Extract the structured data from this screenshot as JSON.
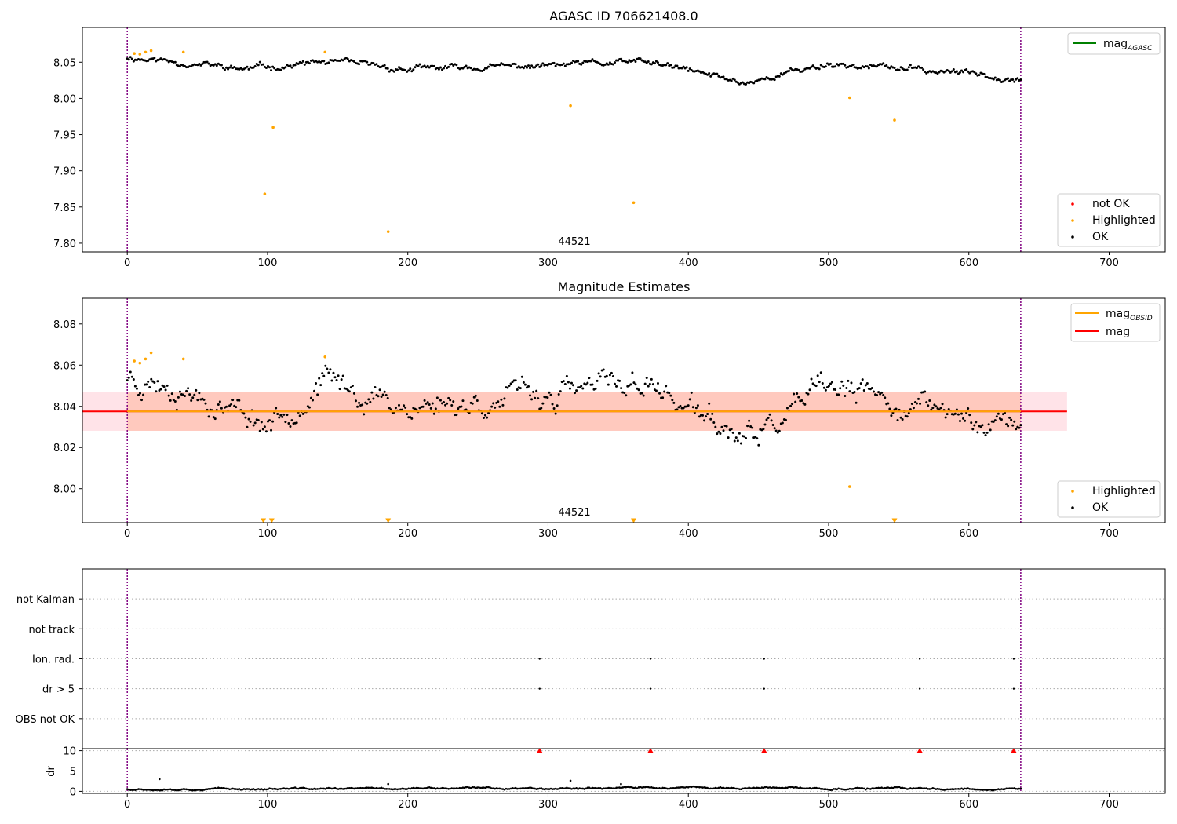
{
  "chart_data": [
    {
      "type": "scatter",
      "title": "AGASC ID 706621408.0",
      "xlim": [
        -32,
        740
      ],
      "ylim": [
        7.788,
        8.098
      ],
      "xticks": [
        0,
        100,
        200,
        300,
        400,
        500,
        600,
        700
      ],
      "yticks": [
        7.8,
        7.85,
        7.9,
        7.95,
        8.0,
        8.05
      ],
      "ytick_labels": [
        "7.80",
        "7.85",
        "7.90",
        "7.95",
        "8.00",
        "8.05"
      ],
      "obsid_lines": [
        0,
        637
      ],
      "obsid_label": {
        "text": "44521",
        "x": 318
      },
      "series": [
        {
          "name": "OK",
          "color": "#000000",
          "model": {
            "x0": 0,
            "x1": 637,
            "n": 560,
            "base": 8.037,
            "seed": 11,
            "noise": 0.005,
            "trend": [
              [
                0,
                8.057
              ],
              [
                40,
                8.05
              ],
              [
                80,
                8.04
              ],
              [
                140,
                8.05
              ],
              [
                200,
                8.04
              ],
              [
                300,
                8.045
              ],
              [
                370,
                8.05
              ],
              [
                440,
                8.022
              ],
              [
                500,
                8.048
              ],
              [
                560,
                8.04
              ],
              [
                637,
                8.03
              ]
            ]
          }
        },
        {
          "name": "Highlighted",
          "color": "#ffa500",
          "x": [
            5,
            9,
            13,
            17,
            40,
            98,
            104,
            141,
            186,
            316,
            361,
            515,
            547
          ],
          "y": [
            8.062,
            8.061,
            8.064,
            8.066,
            8.064,
            7.868,
            7.96,
            8.064,
            7.816,
            7.99,
            7.856,
            8.001,
            7.97
          ]
        },
        {
          "name": "not OK",
          "color": "#ff0000",
          "x": [],
          "y": []
        }
      ],
      "lines": [
        {
          "name": "mag",
          "sub": "AGASC",
          "color": "#008000"
        }
      ],
      "legends": [
        {
          "placement": "top-right",
          "entries": [
            {
              "label": "mag",
              "sub": "AGASC",
              "kind": "line",
              "color": "#008000"
            }
          ]
        },
        {
          "placement": "bottom-right",
          "entries": [
            {
              "label": "not OK",
              "kind": "dot",
              "color": "#ff0000"
            },
            {
              "label": "Highlighted",
              "kind": "dot",
              "color": "#ffa500"
            },
            {
              "label": "OK",
              "kind": "dot",
              "color": "#000000"
            }
          ]
        }
      ]
    },
    {
      "type": "scatter",
      "title": "Magnitude Estimates",
      "xlim": [
        -32,
        740
      ],
      "ylim": [
        7.9835,
        8.0925
      ],
      "xticks": [
        0,
        100,
        200,
        300,
        400,
        500,
        600,
        700
      ],
      "yticks": [
        8.0,
        8.02,
        8.04,
        8.06,
        8.08
      ],
      "ytick_labels": [
        "8.00",
        "8.02",
        "8.04",
        "8.06",
        "8.08"
      ],
      "obsid_lines": [
        0,
        637
      ],
      "obsid_label": {
        "text": "44521",
        "x": 318
      },
      "bands": [
        {
          "color": "#ffc0cb",
          "opacity": 0.45,
          "x": [
            -32,
            670
          ],
          "y": [
            8.0281,
            8.0469
          ]
        },
        {
          "color": "#ffa07a",
          "opacity": 0.38,
          "x": [
            0,
            637
          ],
          "y": [
            8.0281,
            8.0469
          ]
        }
      ],
      "hlines": [
        {
          "name": "mag",
          "color": "#ff0000",
          "y": 8.0375,
          "x": [
            -32,
            670
          ]
        },
        {
          "name": "mag_OBSID",
          "color": "#ffa500",
          "y": 8.0375,
          "x": [
            0,
            637
          ]
        }
      ],
      "series": [
        {
          "name": "OK",
          "color": "#000000",
          "model": {
            "x0": 0,
            "x1": 637,
            "n": 560,
            "base": 8.037,
            "seed": 23,
            "noise": 0.007,
            "trend": [
              [
                0,
                8.055
              ],
              [
                40,
                8.05
              ],
              [
                100,
                8.032
              ],
              [
                140,
                8.052
              ],
              [
                200,
                8.04
              ],
              [
                300,
                8.045
              ],
              [
                370,
                8.052
              ],
              [
                440,
                8.022
              ],
              [
                500,
                8.048
              ],
              [
                560,
                8.04
              ],
              [
                637,
                8.03
              ]
            ]
          }
        },
        {
          "name": "Highlighted",
          "color": "#ffa500",
          "x": [
            5,
            9,
            13,
            17,
            40,
            141,
            515
          ],
          "y": [
            8.062,
            8.061,
            8.063,
            8.066,
            8.063,
            8.064,
            8.001
          ]
        },
        {
          "name": "Highlighted (below axis)",
          "color": "#ffa500",
          "marker": "triangle-down",
          "x": [
            97,
            103,
            186,
            361,
            547
          ],
          "y": [
            7.985,
            7.985,
            7.985,
            7.985,
            7.985
          ]
        }
      ],
      "legends": [
        {
          "placement": "top-right",
          "entries": [
            {
              "label": "mag",
              "sub": "OBSID",
              "kind": "line",
              "color": "#ffa500"
            },
            {
              "label": "mag",
              "kind": "line",
              "color": "#ff0000"
            }
          ]
        },
        {
          "placement": "bottom-right",
          "entries": [
            {
              "label": "Highlighted",
              "kind": "dot",
              "color": "#ffa500"
            },
            {
              "label": "OK",
              "kind": "dot",
              "color": "#000000"
            }
          ]
        }
      ]
    },
    {
      "type": "scatter",
      "xlim": [
        -32,
        740
      ],
      "categories": [
        "not Kalman",
        "not track",
        "Ion. rad.",
        "dr > 5",
        "OBS not OK"
      ],
      "obsid_lines": [
        0,
        637
      ],
      "grid": "horizontal dotted",
      "series": [
        {
          "name": "Ion. rad.",
          "color": "#000000",
          "x": [
            294,
            373,
            454,
            565,
            632
          ]
        },
        {
          "name": "dr > 5",
          "color": "#000000",
          "x": [
            294,
            373,
            454,
            565,
            632
          ]
        }
      ]
    },
    {
      "type": "scatter",
      "ylabel": "dr",
      "xlim": [
        -32,
        740
      ],
      "ylim": [
        -0.5,
        10.5
      ],
      "xticks": [
        0,
        100,
        200,
        300,
        400,
        500,
        600,
        700
      ],
      "yticks": [
        0,
        5,
        10
      ],
      "obsid_lines": [
        0,
        637
      ],
      "series": [
        {
          "name": "dr",
          "color": "#000000",
          "model": {
            "x0": 0,
            "x1": 637,
            "n": 560,
            "base": 0.6,
            "seed": 37,
            "noise": 0.25,
            "trend": [
              [
                0,
                0.6
              ],
              [
                100,
                0.6
              ],
              [
                300,
                0.8
              ],
              [
                350,
                0.9
              ],
              [
                500,
                0.7
              ],
              [
                637,
                0.6
              ]
            ]
          }
        },
        {
          "name": "dr outliers",
          "color": "#000000",
          "x": [
            23,
            186,
            316,
            352,
            357
          ],
          "y": [
            3.0,
            1.8,
            2.6,
            1.8,
            1.2
          ]
        },
        {
          "name": "dr > 10",
          "color": "#ff0000",
          "marker": "triangle-up",
          "x": [
            294,
            373,
            454,
            565,
            632
          ],
          "y": [
            10,
            10,
            10,
            10,
            10
          ]
        }
      ]
    }
  ]
}
